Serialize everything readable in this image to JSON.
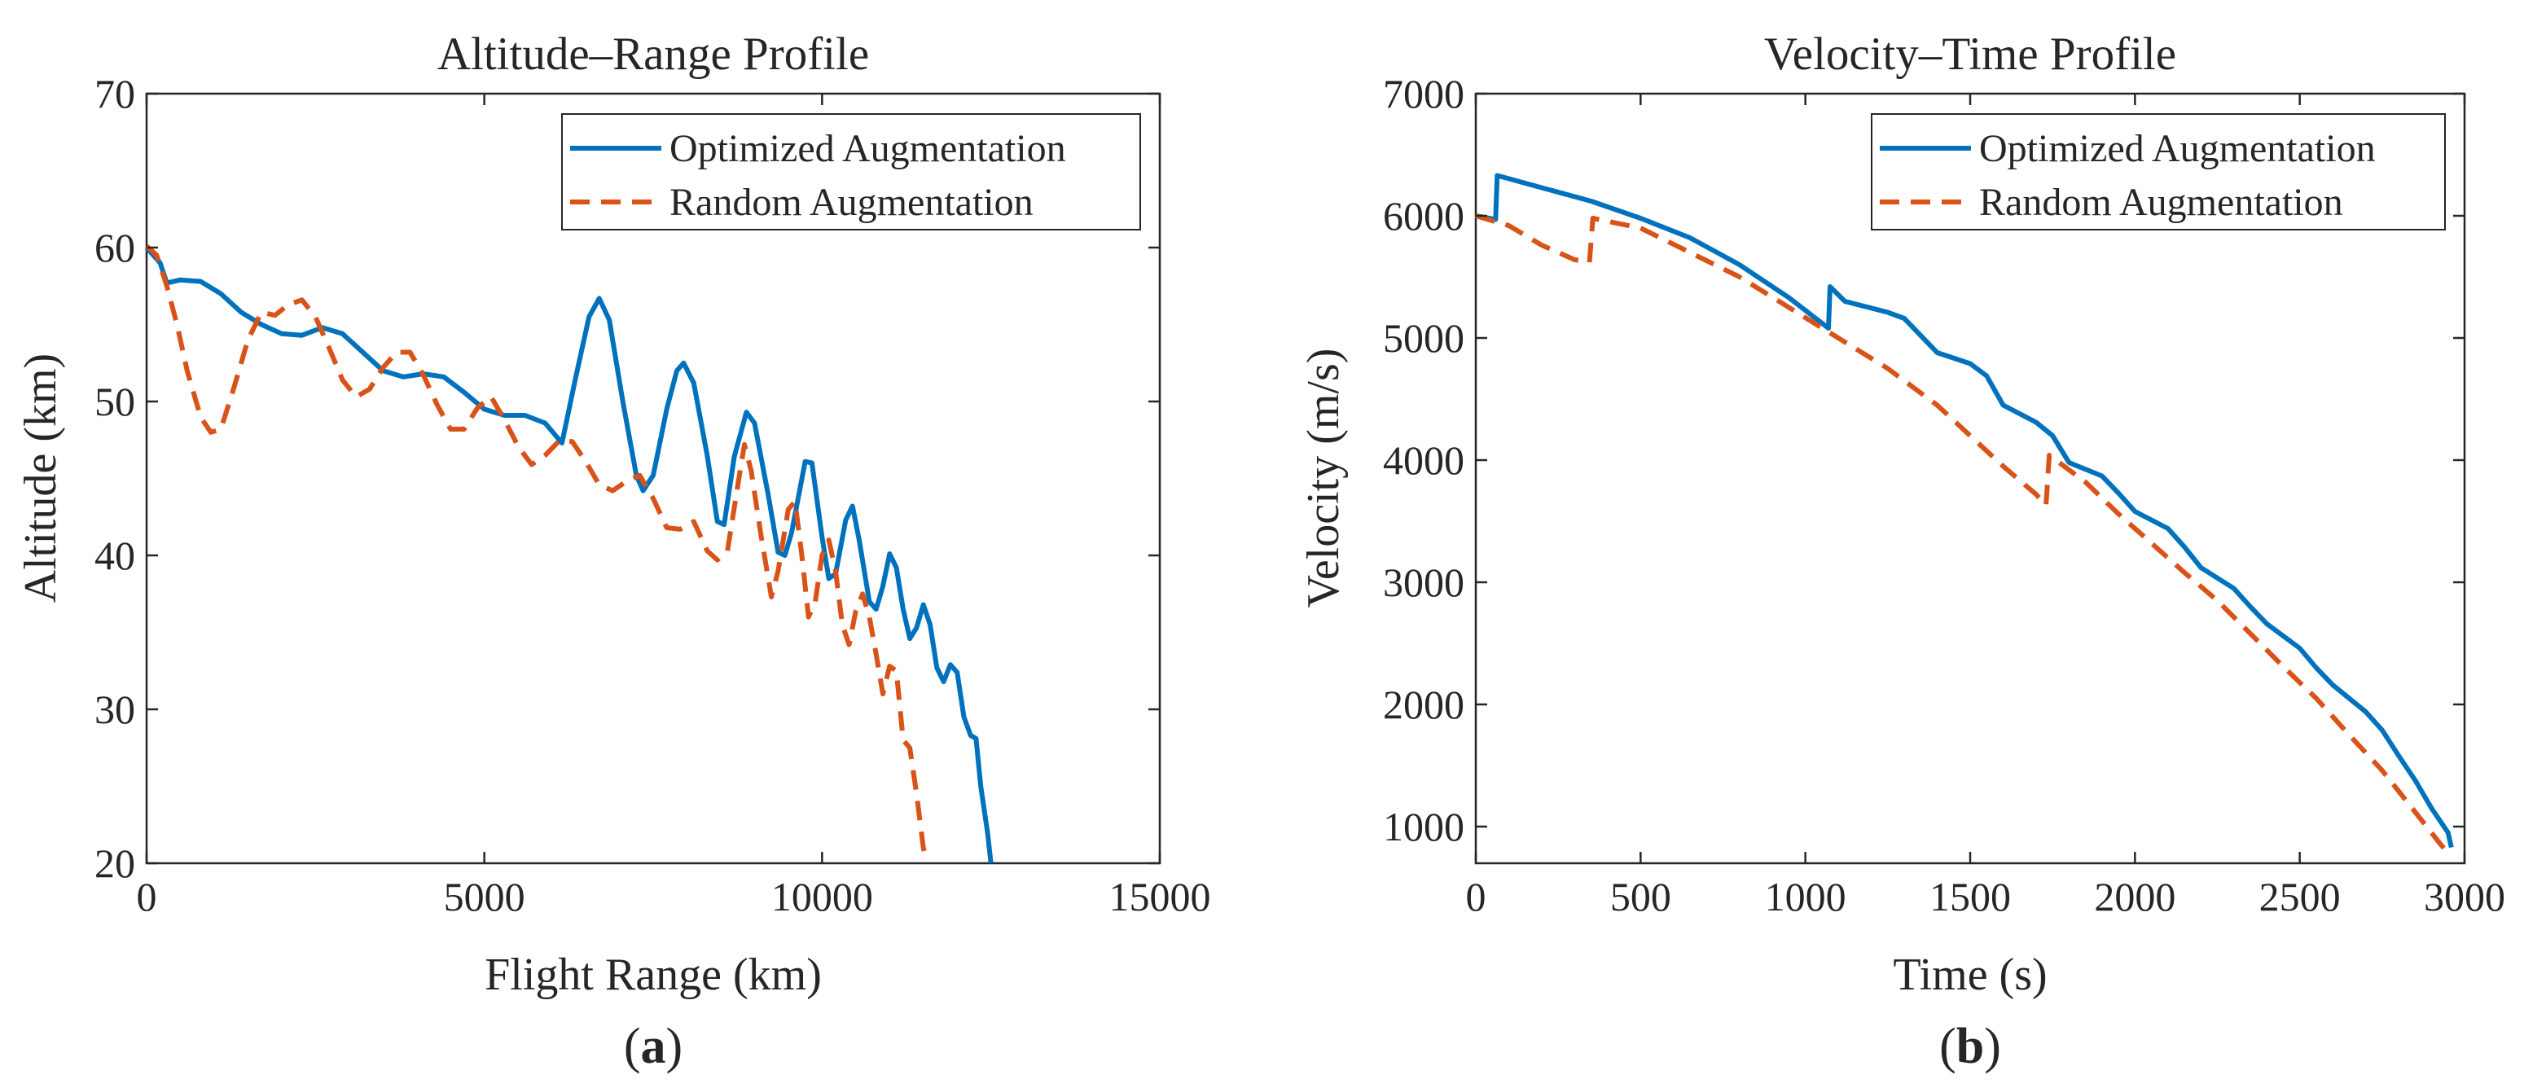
{
  "chart_data": [
    {
      "type": "line",
      "panel_label_open": "(",
      "panel_letter": "a",
      "panel_label_close": ")",
      "title": "Altitude–Range Profile",
      "xlabel": "Flight Range (km)",
      "ylabel": "Altitude (km)",
      "xlim": [
        0,
        15000
      ],
      "ylim": [
        20,
        70
      ],
      "xticks": [
        0,
        5000,
        10000,
        15000
      ],
      "yticks": [
        20,
        30,
        40,
        50,
        60,
        70
      ],
      "legend_position": "top-right",
      "series": [
        {
          "name": "Optimized Augmentation",
          "color": "#0072BD",
          "style": "solid",
          "points": [
            [
              0,
              60
            ],
            [
              200,
              59
            ],
            [
              300,
              57.7
            ],
            [
              500,
              57.9
            ],
            [
              800,
              57.8
            ],
            [
              1100,
              57
            ],
            [
              1400,
              55.8
            ],
            [
              1700,
              55
            ],
            [
              2000,
              54.4
            ],
            [
              2300,
              54.3
            ],
            [
              2600,
              54.8
            ],
            [
              2900,
              54.4
            ],
            [
              3200,
              53.2
            ],
            [
              3500,
              52
            ],
            [
              3800,
              51.6
            ],
            [
              4100,
              51.8
            ],
            [
              4400,
              51.6
            ],
            [
              4700,
              50.6
            ],
            [
              5000,
              49.5
            ],
            [
              5300,
              49.1
            ],
            [
              5600,
              49.1
            ],
            [
              5900,
              48.6
            ],
            [
              6150,
              47.3
            ],
            [
              6350,
              51.5
            ],
            [
              6550,
              55.5
            ],
            [
              6700,
              56.7
            ],
            [
              6850,
              55.3
            ],
            [
              7050,
              50
            ],
            [
              7250,
              45.2
            ],
            [
              7350,
              44.2
            ],
            [
              7500,
              45.2
            ],
            [
              7700,
              49.5
            ],
            [
              7850,
              52
            ],
            [
              7950,
              52.5
            ],
            [
              8100,
              51.2
            ],
            [
              8300,
              46.5
            ],
            [
              8450,
              42.2
            ],
            [
              8550,
              42
            ],
            [
              8700,
              46.4
            ],
            [
              8880,
              49.3
            ],
            [
              9000,
              48.6
            ],
            [
              9200,
              44
            ],
            [
              9350,
              40.2
            ],
            [
              9450,
              40
            ],
            [
              9550,
              41.5
            ],
            [
              9750,
              46.1
            ],
            [
              9850,
              46
            ],
            [
              10000,
              41.2
            ],
            [
              10100,
              38.5
            ],
            [
              10200,
              38.8
            ],
            [
              10350,
              42.3
            ],
            [
              10450,
              43.2
            ],
            [
              10550,
              41
            ],
            [
              10700,
              37
            ],
            [
              10800,
              36.5
            ],
            [
              10900,
              38
            ],
            [
              11000,
              40.1
            ],
            [
              11100,
              39.2
            ],
            [
              11200,
              36.5
            ],
            [
              11300,
              34.6
            ],
            [
              11400,
              35.3
            ],
            [
              11500,
              36.8
            ],
            [
              11600,
              35.5
            ],
            [
              11700,
              32.7
            ],
            [
              11800,
              31.8
            ],
            [
              11900,
              32.9
            ],
            [
              12000,
              32.4
            ],
            [
              12100,
              29.5
            ],
            [
              12200,
              28.3
            ],
            [
              12280,
              28.1
            ],
            [
              12350,
              25
            ],
            [
              12450,
              22
            ],
            [
              12500,
              20
            ]
          ]
        },
        {
          "name": "Random Augmentation",
          "color": "#D95319",
          "style": "dashed",
          "points": [
            [
              0,
              60.1
            ],
            [
              150,
              59.5
            ],
            [
              300,
              57.5
            ],
            [
              450,
              55
            ],
            [
              600,
              52
            ],
            [
              800,
              49
            ],
            [
              950,
              48
            ],
            [
              1100,
              48.2
            ],
            [
              1300,
              51
            ],
            [
              1500,
              54
            ],
            [
              1700,
              55.8
            ],
            [
              1900,
              55.6
            ],
            [
              2100,
              56.3
            ],
            [
              2300,
              56.6
            ],
            [
              2500,
              55.5
            ],
            [
              2700,
              53.5
            ],
            [
              2900,
              51.4
            ],
            [
              3100,
              50.3
            ],
            [
              3300,
              50.8
            ],
            [
              3500,
              52.2
            ],
            [
              3700,
              53.2
            ],
            [
              3900,
              53.2
            ],
            [
              4100,
              51.7
            ],
            [
              4300,
              49.8
            ],
            [
              4500,
              48.2
            ],
            [
              4700,
              48.2
            ],
            [
              4900,
              49.6
            ],
            [
              5100,
              50.3
            ],
            [
              5300,
              48.8
            ],
            [
              5500,
              47.1
            ],
            [
              5700,
              45.9
            ],
            [
              5900,
              46.5
            ],
            [
              6100,
              47.4
            ],
            [
              6300,
              47.4
            ],
            [
              6500,
              46.1
            ],
            [
              6700,
              44.6
            ],
            [
              6900,
              44.2
            ],
            [
              7100,
              44.8
            ],
            [
              7300,
              45.2
            ],
            [
              7500,
              43.7
            ],
            [
              7700,
              41.8
            ],
            [
              7900,
              41.7
            ],
            [
              8100,
              42.2
            ],
            [
              8300,
              40.3
            ],
            [
              8450,
              39.7
            ],
            [
              8600,
              40.3
            ],
            [
              8750,
              44.5
            ],
            [
              8850,
              47.2
            ],
            [
              8950,
              45.5
            ],
            [
              9100,
              41.2
            ],
            [
              9250,
              37.3
            ],
            [
              9350,
              39
            ],
            [
              9500,
              43
            ],
            [
              9600,
              43.5
            ],
            [
              9700,
              40
            ],
            [
              9800,
              36
            ],
            [
              9900,
              37
            ],
            [
              10000,
              40
            ],
            [
              10100,
              41
            ],
            [
              10200,
              39
            ],
            [
              10300,
              35.5
            ],
            [
              10400,
              34.2
            ],
            [
              10500,
              36.4
            ],
            [
              10600,
              37.5
            ],
            [
              10700,
              36
            ],
            [
              10800,
              33.6
            ],
            [
              10900,
              31
            ],
            [
              11000,
              32.8
            ],
            [
              11100,
              32.5
            ],
            [
              11200,
              28
            ],
            [
              11300,
              27.5
            ],
            [
              11400,
              24.5
            ],
            [
              11500,
              21
            ],
            [
              11550,
              20.2
            ]
          ]
        }
      ]
    },
    {
      "type": "line",
      "panel_label_open": "(",
      "panel_letter": "b",
      "panel_label_close": ")",
      "title": "Velocity–Time Profile",
      "xlabel": "Time (s)",
      "ylabel": "Velocity (m/s)",
      "xlim": [
        0,
        3000
      ],
      "ylim": [
        700,
        7000
      ],
      "xticks": [
        0,
        500,
        1000,
        1500,
        2000,
        2500,
        3000
      ],
      "yticks": [
        1000,
        2000,
        3000,
        4000,
        5000,
        6000,
        7000
      ],
      "legend_position": "top-right",
      "series": [
        {
          "name": "Optimized Augmentation",
          "color": "#0072BD",
          "style": "solid",
          "points": [
            [
              0,
              6000
            ],
            [
              60,
              5970
            ],
            [
              65,
              6330
            ],
            [
              200,
              6230
            ],
            [
              350,
              6120
            ],
            [
              500,
              5980
            ],
            [
              650,
              5820
            ],
            [
              800,
              5600
            ],
            [
              950,
              5330
            ],
            [
              1070,
              5080
            ],
            [
              1075,
              5420
            ],
            [
              1120,
              5300
            ],
            [
              1250,
              5210
            ],
            [
              1300,
              5160
            ],
            [
              1400,
              4880
            ],
            [
              1500,
              4790
            ],
            [
              1550,
              4690
            ],
            [
              1600,
              4450
            ],
            [
              1700,
              4310
            ],
            [
              1750,
              4200
            ],
            [
              1800,
              3980
            ],
            [
              1900,
              3870
            ],
            [
              1950,
              3730
            ],
            [
              2000,
              3580
            ],
            [
              2100,
              3440
            ],
            [
              2150,
              3290
            ],
            [
              2200,
              3120
            ],
            [
              2300,
              2950
            ],
            [
              2350,
              2800
            ],
            [
              2400,
              2660
            ],
            [
              2500,
              2460
            ],
            [
              2550,
              2300
            ],
            [
              2600,
              2160
            ],
            [
              2700,
              1940
            ],
            [
              2750,
              1790
            ],
            [
              2800,
              1580
            ],
            [
              2850,
              1380
            ],
            [
              2900,
              1150
            ],
            [
              2950,
              950
            ],
            [
              2960,
              830
            ]
          ]
        },
        {
          "name": "Random Augmentation",
          "color": "#D95319",
          "style": "dashed",
          "points": [
            [
              0,
              6000
            ],
            [
              100,
              5920
            ],
            [
              150,
              5840
            ],
            [
              200,
              5760
            ],
            [
              250,
              5700
            ],
            [
              300,
              5640
            ],
            [
              345,
              5620
            ],
            [
              355,
              5980
            ],
            [
              500,
              5900
            ],
            [
              650,
              5700
            ],
            [
              800,
              5500
            ],
            [
              950,
              5250
            ],
            [
              1100,
              5000
            ],
            [
              1250,
              4750
            ],
            [
              1400,
              4450
            ],
            [
              1500,
              4200
            ],
            [
              1600,
              3950
            ],
            [
              1700,
              3720
            ],
            [
              1730,
              3630
            ],
            [
              1740,
              4040
            ],
            [
              1850,
              3820
            ],
            [
              1950,
              3560
            ],
            [
              2050,
              3320
            ],
            [
              2150,
              3080
            ],
            [
              2250,
              2850
            ],
            [
              2350,
              2580
            ],
            [
              2450,
              2310
            ],
            [
              2550,
              2050
            ],
            [
              2650,
              1750
            ],
            [
              2750,
              1460
            ],
            [
              2850,
              1120
            ],
            [
              2920,
              880
            ],
            [
              2950,
              780
            ]
          ]
        }
      ]
    }
  ]
}
